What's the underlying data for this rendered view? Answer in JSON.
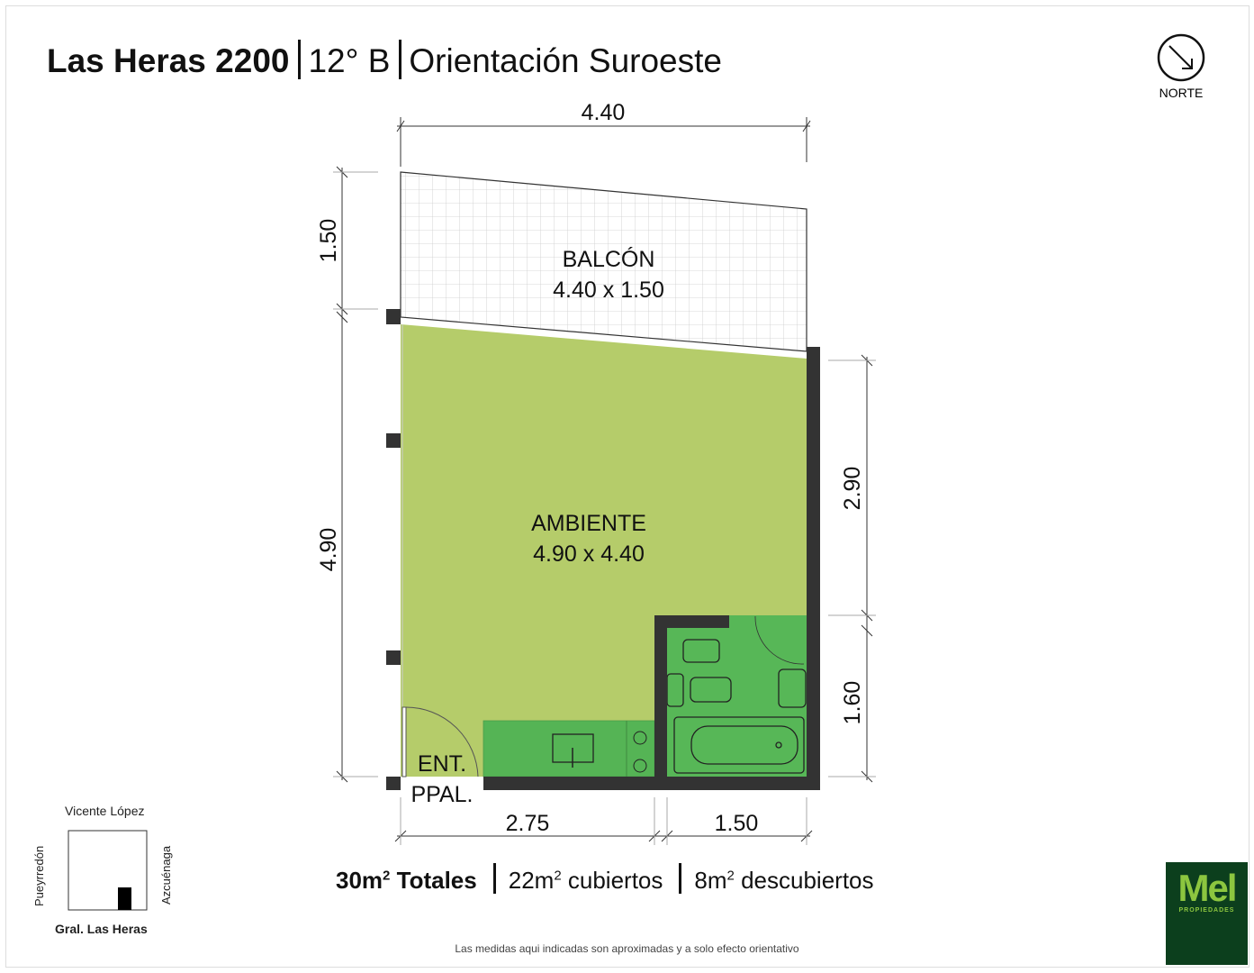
{
  "header": {
    "address": "Las Heras 2200",
    "unit": "12° B",
    "orientation": "Orientación Suroeste"
  },
  "compass": {
    "label": "NORTE",
    "icon": "north-arrow-icon"
  },
  "rooms": {
    "balcony": {
      "name": "BALCÓN",
      "size": "4.40 x 1.50"
    },
    "living": {
      "name": "AMBIENTE",
      "size": "4.90 x 4.40"
    },
    "entrance": {
      "line1": "ENT.",
      "line2": "PPAL."
    }
  },
  "dimensions": {
    "top": "4.40",
    "left_upper": "1.50",
    "left_lower": "4.90",
    "right_upper": "2.90",
    "right_lower": "1.60",
    "bottom_left": "2.75",
    "bottom_right": "1.50"
  },
  "summary": {
    "total": "30m",
    "total_suffix": "Totales",
    "covered": "22m",
    "covered_suffix": "cubiertos",
    "uncovered": "8m",
    "uncovered_suffix": "descubiertos",
    "exp": "2"
  },
  "location_map": {
    "north": "Vicente López",
    "west": "Pueyrredón",
    "east": "Azcuénaga",
    "south": "Gral. Las Heras"
  },
  "disclaimer": "Las medidas aqui indicadas son aproximadas y a solo efecto orientativo",
  "logo": {
    "name": "Mel",
    "subtitle": "PROPIEDADES"
  },
  "colors": {
    "living": "#b5cc6a",
    "wet": "#57b757",
    "wall": "#333333",
    "logo_bg": "#0c3f1d",
    "logo_text": "#8cc63f"
  }
}
